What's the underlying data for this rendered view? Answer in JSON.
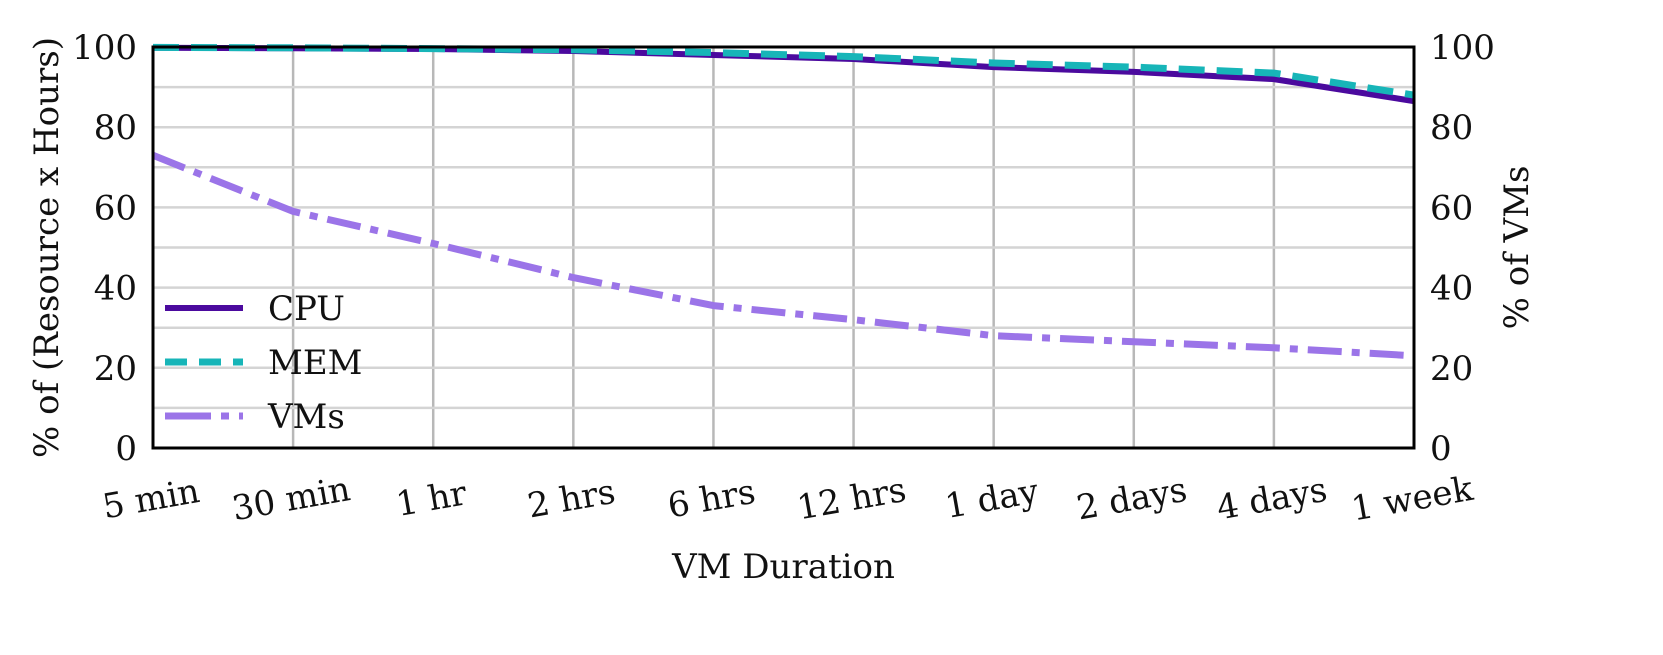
{
  "chart_data": {
    "type": "line",
    "title": "",
    "xlabel": "VM Duration",
    "ylabel": "% of (Resource x Hours)",
    "y2label": "% of VMs",
    "categories": [
      "5 min",
      "30 min",
      "1 hr",
      "2 hrs",
      "6 hrs",
      "12 hrs",
      "1 day",
      "2 days",
      "4 days",
      "1 week"
    ],
    "ylim": [
      0,
      100
    ],
    "y2lim": [
      0,
      100
    ],
    "yticks": [
      "0",
      "20",
      "40",
      "60",
      "80",
      "100"
    ],
    "y2ticks": [
      "0",
      "20",
      "40",
      "60",
      "80",
      "100"
    ],
    "ytick_values": [
      0,
      20,
      40,
      60,
      80,
      100
    ],
    "minor_grid_values": [
      10,
      30,
      50,
      70,
      90
    ],
    "grid": true,
    "legend_position": "lower-left",
    "series": [
      {
        "name": "CPU",
        "axis": "left",
        "style": "solid",
        "color": "#4b0a9e",
        "values": [
          99.8,
          99.7,
          99.5,
          99.0,
          98.0,
          97.0,
          95.0,
          93.8,
          92.0,
          86.5
        ]
      },
      {
        "name": "MEM",
        "axis": "left",
        "style": "dashed",
        "color": "#17b5b8",
        "values": [
          99.9,
          99.8,
          99.6,
          99.3,
          98.6,
          97.6,
          96.0,
          95.0,
          93.5,
          88.0
        ]
      },
      {
        "name": "VMs",
        "axis": "right",
        "style": "dashdot",
        "color": "#9b74e8",
        "values": [
          73.0,
          59.0,
          51.0,
          42.5,
          35.5,
          32.0,
          28.0,
          26.5,
          25.0,
          23.0
        ]
      }
    ]
  }
}
